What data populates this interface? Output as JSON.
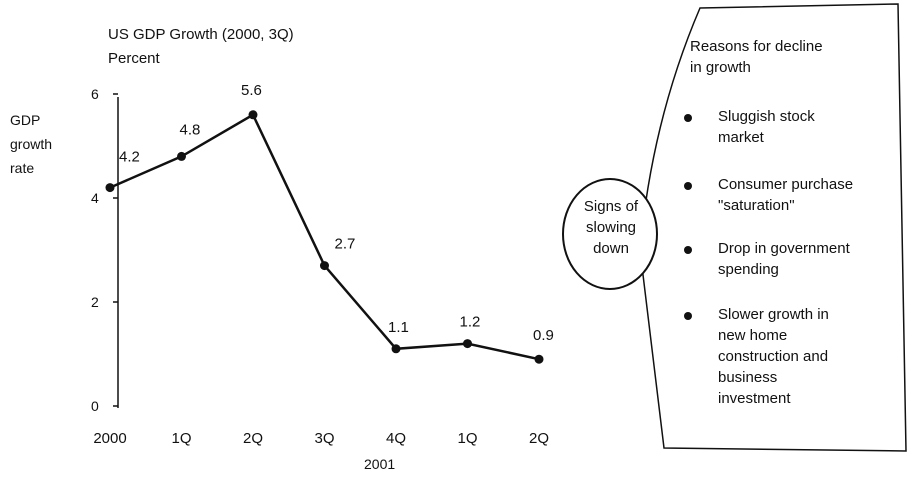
{
  "chart_data": {
    "type": "line",
    "title": "US GDP Growth (2000, 3Q)",
    "subtitle": "Percent",
    "ylabel": [
      "GDP",
      "growth",
      "rate"
    ],
    "xlabel": "2001",
    "categories": [
      "2000",
      "1Q",
      "2Q",
      "3Q",
      "4Q",
      "1Q",
      "2Q"
    ],
    "values": [
      4.2,
      4.8,
      5.6,
      2.7,
      1.1,
      1.2,
      0.9
    ],
    "data_labels": [
      "4.2",
      "4.8",
      "5.6",
      "2.7",
      "1.1",
      "1.2",
      "0.9"
    ],
    "yticks": [
      0,
      2,
      4,
      6
    ],
    "ylim": [
      0,
      6
    ],
    "grid": false,
    "line_color": "#111111"
  },
  "callout": {
    "circle_text": [
      "Signs of",
      "slowing",
      "down"
    ],
    "panel_heading": [
      "Reasons for decline",
      "in growth"
    ],
    "reasons": [
      [
        "Sluggish stock",
        "market"
      ],
      [
        "Consumer purchase",
        "\"saturation\""
      ],
      [
        "Drop in government",
        "spending"
      ],
      [
        "Slower growth in",
        "new home",
        "construction and",
        "business",
        "investment"
      ]
    ]
  }
}
